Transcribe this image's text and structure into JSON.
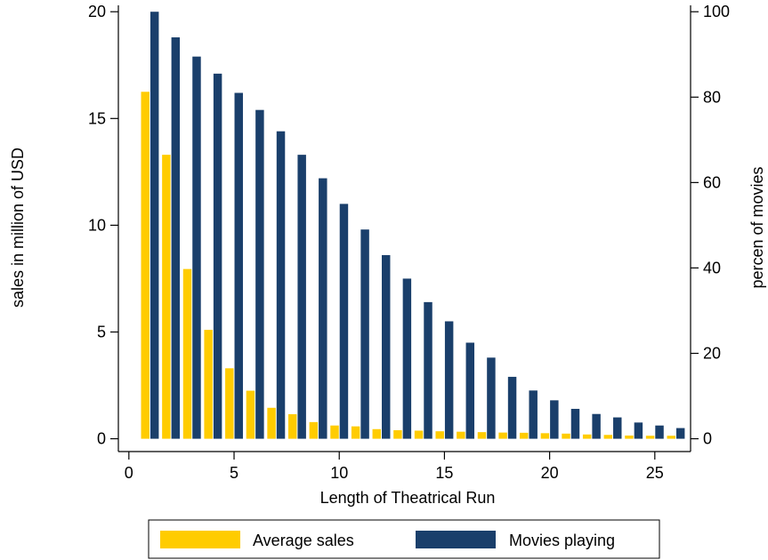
{
  "chart_data": {
    "type": "bar",
    "xlabel": "Length of Theatrical Run",
    "ylabel_left": "sales in million of USD",
    "ylabel_right": "percen of movies",
    "xlim": [
      -0.5,
      26.7
    ],
    "ylim_left": [
      -0.6,
      20.3
    ],
    "ylim_right": [
      -3,
      101.5
    ],
    "x_ticks": [
      0,
      5,
      10,
      15,
      20,
      25
    ],
    "y_left_ticks": [
      0,
      5,
      10,
      15,
      20
    ],
    "y_right_ticks": [
      0,
      20,
      40,
      60,
      80,
      100
    ],
    "grid": false,
    "legend_position": "bottom",
    "x": [
      1,
      2,
      3,
      4,
      5,
      6,
      7,
      8,
      9,
      10,
      11,
      12,
      13,
      14,
      15,
      16,
      17,
      18,
      19,
      20,
      21,
      22,
      23,
      24,
      25,
      26
    ],
    "series": [
      {
        "name": "Average sales",
        "axis": "left",
        "color": "#FFCC00",
        "values": [
          16.25,
          13.3,
          7.95,
          5.1,
          3.3,
          2.25,
          1.45,
          1.15,
          0.78,
          0.62,
          0.58,
          0.45,
          0.4,
          0.38,
          0.35,
          0.33,
          0.31,
          0.29,
          0.28,
          0.26,
          0.24,
          0.2,
          0.18,
          0.15,
          0.14,
          0.14
        ]
      },
      {
        "name": "Movies playing",
        "axis": "right",
        "color": "#1A3F6B",
        "values": [
          100,
          94,
          89.5,
          85.5,
          81,
          77,
          72,
          66.5,
          61,
          55,
          49,
          43,
          37.5,
          32,
          27.5,
          22.5,
          19,
          14.5,
          11.3,
          9,
          7,
          5.8,
          5,
          3.8,
          3.1,
          2.5
        ]
      }
    ]
  }
}
